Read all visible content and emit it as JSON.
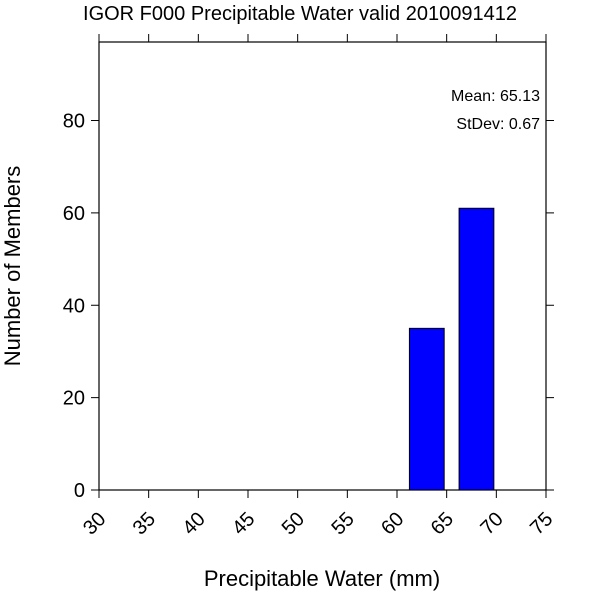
{
  "chart_data": {
    "type": "bar",
    "title": "IGOR F000 Precipitable Water valid 2010091412",
    "xlabel": "Precipitable Water (mm)",
    "ylabel": "Number of Members",
    "xlim": [
      30,
      75
    ],
    "ylim": [
      0,
      97
    ],
    "x_ticks": [
      30,
      35,
      40,
      45,
      50,
      55,
      60,
      65,
      70,
      75
    ],
    "y_ticks": [
      0,
      20,
      40,
      60,
      80
    ],
    "bins": [
      {
        "x_start": 61.25,
        "x_end": 64.75,
        "value": 35
      },
      {
        "x_start": 66.25,
        "x_end": 69.75,
        "value": 61
      }
    ],
    "bar_color": "#0000ff",
    "annotations": {
      "mean": "Mean: 65.13",
      "stdev": "StDev: 0.67"
    },
    "grid": false
  }
}
